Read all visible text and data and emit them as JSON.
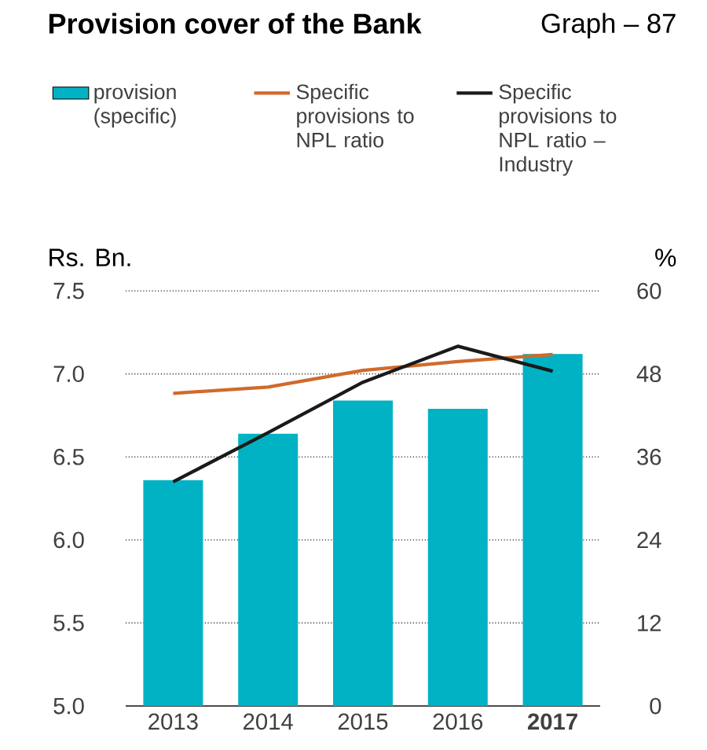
{
  "chart_data": {
    "type": "bar",
    "title": "Provision cover of the Bank",
    "annotations": [
      "Graph – 87"
    ],
    "ylabel": "Rs. Bn.",
    "y2label": "%",
    "categories": [
      "2013",
      "2014",
      "2015",
      "2016",
      "**2017**"
    ],
    "series": [
      {
        "name": "provision (specific)",
        "color": "#00b2c4",
        "values": [
          6.36,
          6.64,
          6.84,
          6.79,
          7.12
        ]
      },
      {
        "name": "Specific provisions to NPL ratio",
        "type": "line",
        "axis": "y2",
        "color": "#d06a2c",
        "values": [
          45.2,
          46.1,
          48.5,
          49.8,
          50.8
        ]
      },
      {
        "name": "Specific provisions to NPL ratio – Industry",
        "type": "line",
        "axis": "y2",
        "color": "#1a1a1a",
        "values": [
          32.4,
          39.5,
          46.8,
          52.0,
          48.4
        ]
      }
    ],
    "ylim": [
      5,
      7.5
    ],
    "yticks": [
      {
        "value": 5,
        "label": "5.0"
      },
      {
        "value": 5.5,
        "label": "5.5"
      },
      {
        "value": 6,
        "label": "6.0"
      },
      {
        "value": 6.5,
        "label": "6.5"
      },
      {
        "value": 7,
        "label": "7.0"
      },
      {
        "value": 7.5,
        "label": "7.5"
      }
    ],
    "y2lim": [
      0,
      60
    ],
    "y2ticks": [
      0,
      12,
      24,
      36,
      48,
      60
    ],
    "grid": "y",
    "legend": "top"
  }
}
